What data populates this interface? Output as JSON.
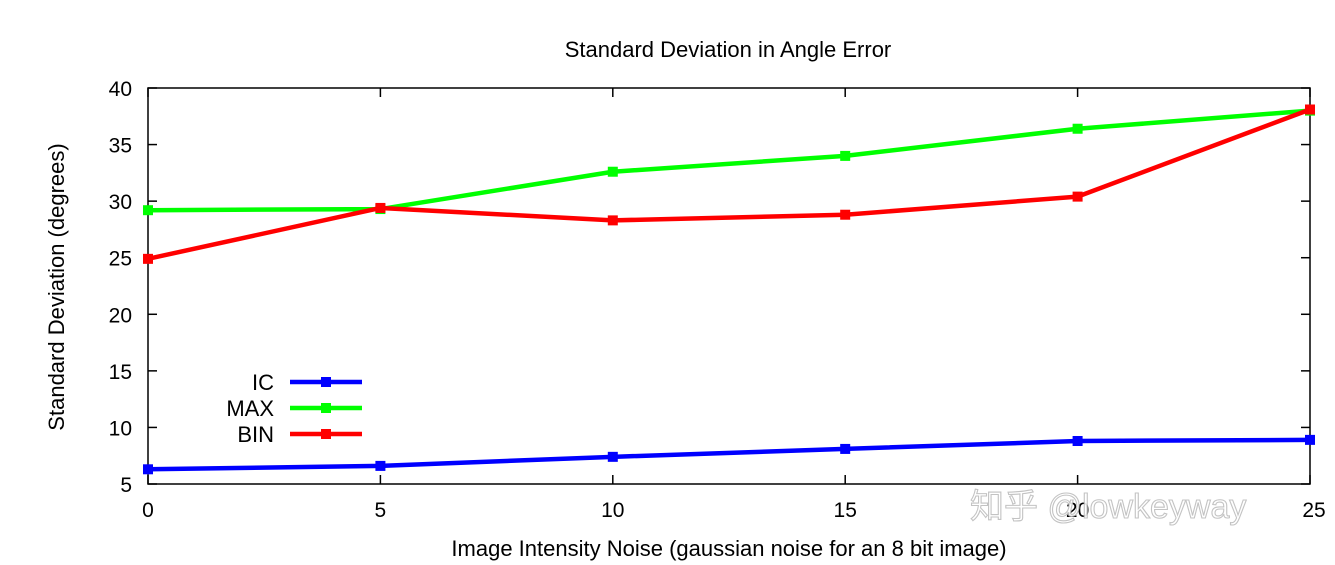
{
  "chart_data": {
    "type": "line",
    "title": "Standard Deviation in Angle Error",
    "xlabel": "Image Intensity Noise (gaussian noise for an 8 bit image)",
    "ylabel": "Standard Deviation (degrees)",
    "xlim": [
      0,
      25
    ],
    "ylim": [
      5,
      40
    ],
    "x_ticks": [
      0,
      5,
      10,
      15,
      20,
      25
    ],
    "y_ticks": [
      5,
      10,
      15,
      20,
      25,
      30,
      35,
      40
    ],
    "x": [
      0,
      5,
      10,
      15,
      20,
      25
    ],
    "grid": false,
    "legend_position": "bottom-left",
    "series": [
      {
        "name": "IC",
        "color": "#0000ff",
        "values": [
          6.3,
          6.6,
          7.4,
          8.1,
          8.8,
          8.9
        ]
      },
      {
        "name": "MAX",
        "color": "#00ff00",
        "values": [
          29.2,
          29.3,
          32.6,
          34.0,
          36.4,
          38.0
        ]
      },
      {
        "name": "BIN",
        "color": "#ff0000",
        "values": [
          24.9,
          29.4,
          28.3,
          28.8,
          30.4,
          38.1
        ]
      }
    ]
  },
  "watermark": "知乎 @lowkeyway"
}
